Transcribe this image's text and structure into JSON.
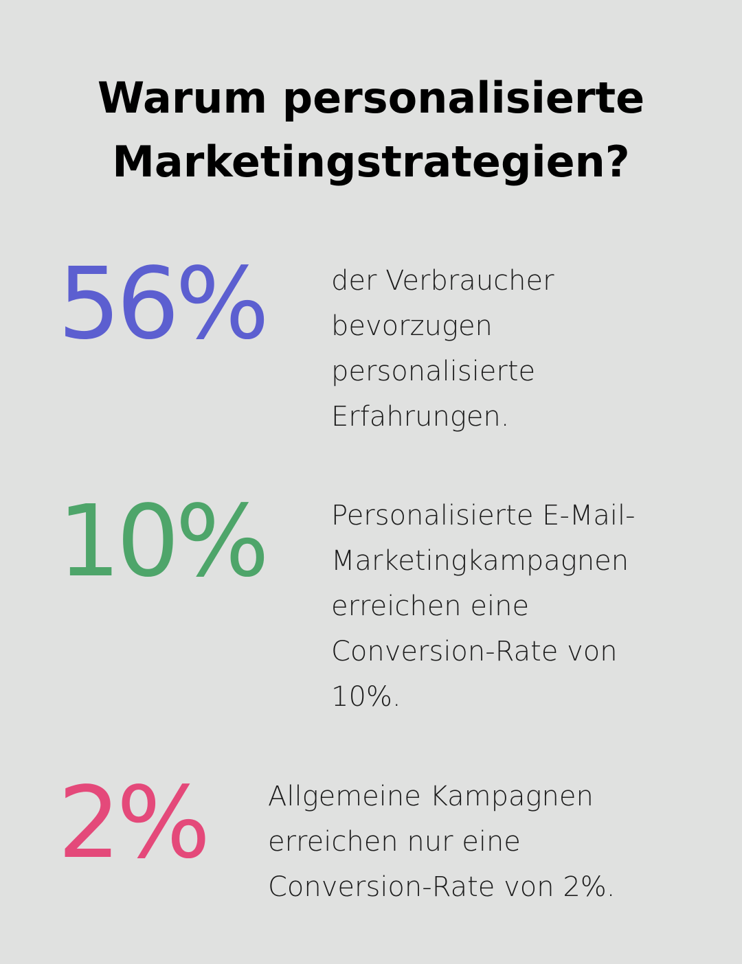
{
  "title_line1": "Warum personalisierte",
  "title_line2": "Marketingstrategien?",
  "stats": [
    {
      "value": "56%",
      "color": "#5c5fd0",
      "lines": [
        "der Verbraucher",
        "bevorzugen",
        "personalisierte",
        "Erfahrungen."
      ]
    },
    {
      "value": "10%",
      "color": "#4ea56a",
      "lines": [
        "Personalisierte E-Mail-",
        "Marketingkampagnen",
        "erreichen eine",
        "Conversion-Rate von",
        "10%."
      ]
    },
    {
      "value": "2%",
      "color": "#e4497a",
      "lines": [
        "Allgemeine Kampagnen",
        "erreichen nur eine",
        "Conversion-Rate von 2%."
      ]
    }
  ]
}
